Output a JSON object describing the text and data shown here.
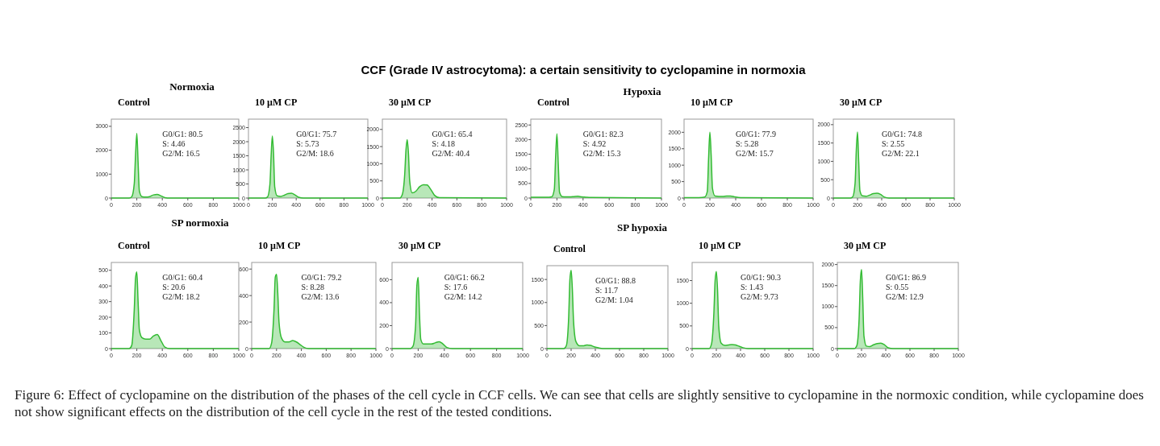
{
  "chart_data": [
    {
      "type": "other",
      "title": "CCF (Grade IV astrocytoma): a certain sensitivity to cyclopamine in normoxia",
      "annotations": [
        "Normoxia",
        "Hypoxia",
        "SP normoxia",
        "SP hypoxia",
        "Figure 6: Effect of cyclopamine on the distribution of the phases of the cell cycle in CCF cells. We can see that cells are slightly sensitive to cyclopamine in the normoxic condition, while cyclopamine does not show significant effects on the distribution of the cell cycle in the rest of the tested conditions."
      ]
    },
    {
      "type": "area",
      "title": "Control",
      "annotations": [
        "G0/G1: 80.5",
        "S: 4.46",
        "G2/M: 16.5"
      ],
      "x": [
        0,
        140,
        160,
        180,
        190,
        200,
        210,
        220,
        240,
        270,
        300,
        330,
        360,
        390,
        420,
        460,
        1000
      ],
      "xlim": [
        0,
        1000
      ],
      "xticks": [
        0,
        200,
        400,
        600,
        800,
        1000
      ],
      "ylim": [
        0,
        3300
      ],
      "yticks": [
        0,
        1000,
        2000,
        3000
      ],
      "series": [
        {
          "color": "#33bb33",
          "values": [
            0,
            0,
            50,
            600,
            1800,
            2700,
            1500,
            300,
            60,
            40,
            60,
            130,
            150,
            90,
            20,
            0,
            0
          ]
        }
      ]
    },
    {
      "type": "area",
      "title": "10 µM CP",
      "annotations": [
        "G0/G1: 75.7",
        "S: 5.73",
        "G2/M: 18.6"
      ],
      "x": [
        0,
        140,
        160,
        180,
        190,
        200,
        210,
        220,
        240,
        270,
        300,
        330,
        360,
        390,
        420,
        460,
        1000
      ],
      "xlim": [
        0,
        1000
      ],
      "xticks": [
        0,
        200,
        400,
        600,
        800,
        1000
      ],
      "ylim": [
        0,
        2800
      ],
      "yticks": [
        0,
        500,
        1000,
        1500,
        2000,
        2500
      ],
      "series": [
        {
          "color": "#33bb33",
          "values": [
            0,
            0,
            40,
            500,
            1500,
            2200,
            1600,
            400,
            80,
            60,
            100,
            160,
            170,
            110,
            30,
            0,
            0
          ]
        }
      ]
    },
    {
      "type": "area",
      "title": "30 µM CP",
      "annotations": [
        "G0/G1: 65.4",
        "S: 4.18",
        "G2/M: 40.4"
      ],
      "x": [
        0,
        140,
        160,
        180,
        190,
        200,
        210,
        220,
        240,
        270,
        300,
        330,
        360,
        390,
        420,
        460,
        1000
      ],
      "xlim": [
        0,
        1000
      ],
      "xticks": [
        0,
        200,
        400,
        600,
        800,
        1000
      ],
      "ylim": [
        0,
        2300
      ],
      "yticks": [
        0,
        500,
        1000,
        1500,
        2000
      ],
      "series": [
        {
          "color": "#33bb33",
          "values": [
            0,
            0,
            100,
            700,
            1400,
            1700,
            1300,
            500,
            150,
            200,
            330,
            390,
            380,
            250,
            80,
            10,
            0
          ]
        }
      ]
    },
    {
      "type": "area",
      "title": "Control",
      "annotations": [
        "G0/G1: 82.3",
        "S: 4.92",
        "G2/M: 15.3"
      ],
      "x": [
        0,
        140,
        160,
        180,
        190,
        200,
        210,
        220,
        240,
        270,
        300,
        330,
        360,
        390,
        420,
        460,
        1000
      ],
      "xlim": [
        0,
        1000
      ],
      "xticks": [
        0,
        200,
        400,
        600,
        800,
        1000
      ],
      "ylim": [
        0,
        2700
      ],
      "yticks": [
        0,
        500,
        1000,
        1500,
        2000,
        2500
      ],
      "series": [
        {
          "color": "#33bb33",
          "values": [
            30,
            30,
            40,
            300,
            1400,
            2200,
            1200,
            200,
            50,
            40,
            40,
            50,
            60,
            40,
            30,
            20,
            0
          ]
        }
      ]
    },
    {
      "type": "area",
      "title": "10 µM CP",
      "annotations": [
        "G0/G1: 77.9",
        "S: 5.28",
        "G2/M: 15.7"
      ],
      "x": [
        0,
        140,
        160,
        180,
        190,
        200,
        210,
        220,
        240,
        270,
        300,
        330,
        360,
        390,
        420,
        460,
        1000
      ],
      "xlim": [
        0,
        1000
      ],
      "xticks": [
        0,
        200,
        400,
        600,
        800,
        1000
      ],
      "ylim": [
        0,
        2400
      ],
      "yticks": [
        0,
        500,
        1000,
        1500,
        2000
      ],
      "series": [
        {
          "color": "#33bb33",
          "values": [
            10,
            20,
            30,
            200,
            1200,
            2000,
            1300,
            300,
            60,
            50,
            50,
            60,
            60,
            40,
            20,
            10,
            0
          ]
        }
      ]
    },
    {
      "type": "area",
      "title": "30 µM CP",
      "annotations": [
        "G0/G1: 74.8",
        "S: 2.55",
        "G2/M: 22.1"
      ],
      "x": [
        0,
        140,
        160,
        180,
        190,
        200,
        210,
        220,
        240,
        270,
        300,
        330,
        360,
        390,
        420,
        460,
        1000
      ],
      "xlim": [
        0,
        1000
      ],
      "xticks": [
        0,
        200,
        400,
        600,
        800,
        1000
      ],
      "ylim": [
        0,
        2150
      ],
      "yticks": [
        0,
        500,
        1000,
        1500,
        2000
      ],
      "series": [
        {
          "color": "#33bb33",
          "values": [
            0,
            0,
            30,
            400,
            1300,
            1800,
            1000,
            200,
            60,
            50,
            80,
            120,
            130,
            100,
            30,
            0,
            0
          ]
        }
      ]
    },
    {
      "type": "area",
      "title": "Control",
      "annotations": [
        "G0/G1: 60.4",
        "S: 20.6",
        "G2/M: 18.2"
      ],
      "x": [
        0,
        140,
        160,
        180,
        190,
        200,
        210,
        220,
        240,
        270,
        300,
        330,
        360,
        390,
        420,
        460,
        1000
      ],
      "xlim": [
        0,
        1000
      ],
      "xticks": [
        0,
        200,
        400,
        600,
        800,
        1000
      ],
      "ylim": [
        0,
        550
      ],
      "yticks": [
        0,
        100,
        200,
        300,
        400,
        500
      ],
      "series": [
        {
          "color": "#33bb33",
          "values": [
            0,
            0,
            20,
            250,
            450,
            490,
            300,
            120,
            70,
            60,
            60,
            80,
            90,
            50,
            10,
            0,
            0
          ]
        }
      ]
    },
    {
      "type": "area",
      "title": "10 µM CP",
      "annotations": [
        "G0/G1: 79.2",
        "S: 8.28",
        "G2/M: 13.6"
      ],
      "x": [
        0,
        140,
        160,
        180,
        190,
        200,
        210,
        220,
        240,
        270,
        300,
        330,
        360,
        390,
        420,
        460,
        1000
      ],
      "xlim": [
        0,
        1000
      ],
      "xticks": [
        0,
        200,
        400,
        600,
        800,
        1000
      ],
      "ylim": [
        0,
        650
      ],
      "yticks": [
        0,
        200,
        400,
        600
      ],
      "series": [
        {
          "color": "#33bb33",
          "values": [
            0,
            0,
            40,
            300,
            540,
            560,
            420,
            200,
            80,
            50,
            50,
            60,
            50,
            30,
            10,
            0,
            0
          ]
        }
      ]
    },
    {
      "type": "area",
      "title": "30 µM CP",
      "annotations": [
        "G0/G1: 66.2",
        "S: 17.6",
        "G2/M: 14.2"
      ],
      "x": [
        0,
        140,
        160,
        180,
        190,
        200,
        210,
        220,
        240,
        270,
        300,
        330,
        360,
        390,
        420,
        460,
        1000
      ],
      "xlim": [
        0,
        1000
      ],
      "xticks": [
        0,
        200,
        400,
        600,
        800,
        1000
      ],
      "ylim": [
        0,
        750
      ],
      "yticks": [
        0,
        200,
        400,
        600
      ],
      "series": [
        {
          "color": "#33bb33",
          "values": [
            0,
            0,
            20,
            200,
            550,
            620,
            300,
            80,
            40,
            40,
            40,
            50,
            60,
            40,
            10,
            0,
            0
          ]
        }
      ]
    },
    {
      "type": "area",
      "title": "Control",
      "annotations": [
        "G0/G1: 88.8",
        "S: 11.7",
        "G2/M: 1.04"
      ],
      "x": [
        0,
        140,
        160,
        180,
        190,
        200,
        210,
        220,
        240,
        270,
        300,
        330,
        360,
        390,
        420,
        460,
        1000
      ],
      "xlim": [
        0,
        1000
      ],
      "xticks": [
        0,
        200,
        400,
        600,
        800,
        1000
      ],
      "ylim": [
        0,
        1800
      ],
      "yticks": [
        0,
        500,
        1000,
        1500
      ],
      "series": [
        {
          "color": "#33bb33",
          "values": [
            0,
            0,
            60,
            700,
            1500,
            1700,
            1300,
            600,
            150,
            60,
            60,
            80,
            70,
            40,
            20,
            0,
            0
          ]
        }
      ]
    },
    {
      "type": "area",
      "title": "10 µM CP",
      "annotations": [
        "G0/G1: 90.3",
        "S: 1.43",
        "G2/M: 9.73"
      ],
      "x": [
        0,
        140,
        160,
        180,
        190,
        200,
        210,
        220,
        240,
        270,
        300,
        330,
        360,
        390,
        420,
        460,
        1000
      ],
      "xlim": [
        0,
        1000
      ],
      "xticks": [
        0,
        200,
        400,
        600,
        800,
        1000
      ],
      "ylim": [
        0,
        1900
      ],
      "yticks": [
        0,
        500,
        1000,
        1500
      ],
      "series": [
        {
          "color": "#33bb33",
          "values": [
            0,
            0,
            100,
            800,
            1500,
            1700,
            1300,
            500,
            120,
            70,
            80,
            90,
            80,
            50,
            20,
            0,
            0
          ]
        }
      ]
    },
    {
      "type": "area",
      "title": "30 µM CP",
      "annotations": [
        "G0/G1: 86.9",
        "S: 0.55",
        "G2/M: 12.9"
      ],
      "x": [
        0,
        140,
        160,
        180,
        190,
        200,
        210,
        220,
        240,
        270,
        300,
        330,
        360,
        390,
        420,
        460,
        1000
      ],
      "xlim": [
        0,
        1000
      ],
      "xticks": [
        0,
        200,
        400,
        600,
        800,
        1000
      ],
      "ylim": [
        0,
        2050
      ],
      "yticks": [
        0,
        500,
        1000,
        1500,
        2000
      ],
      "series": [
        {
          "color": "#33bb33",
          "values": [
            0,
            0,
            60,
            700,
            1600,
            1880,
            1200,
            300,
            60,
            50,
            90,
            120,
            130,
            90,
            20,
            0,
            0
          ]
        }
      ]
    }
  ]
}
